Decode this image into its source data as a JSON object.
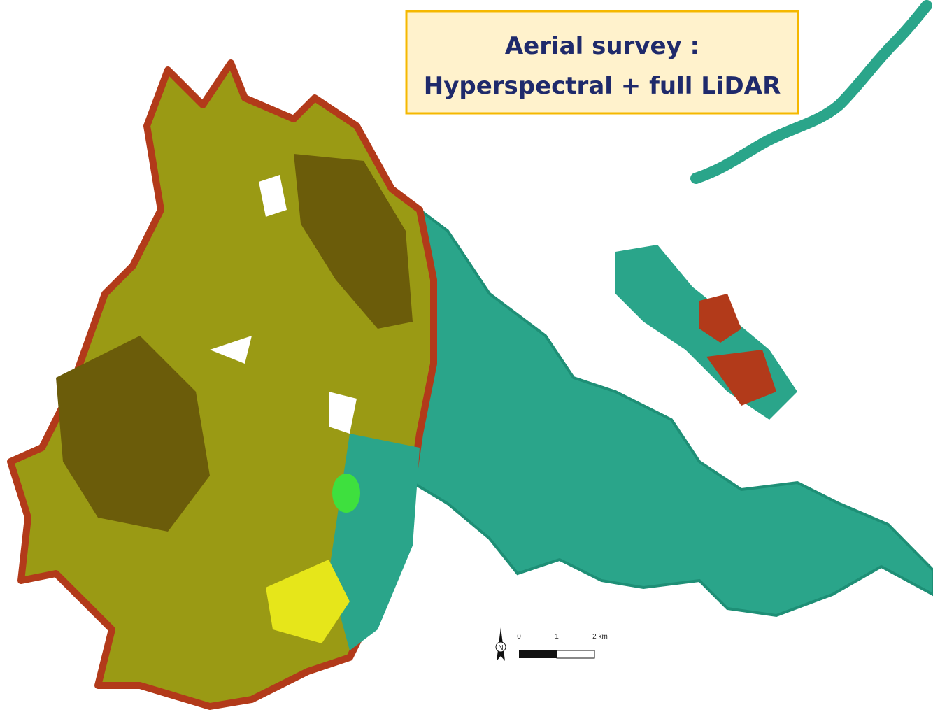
{
  "title_box": {
    "lines": [
      "Aerial survey :",
      "Hyperspectral + full LiDAR"
    ]
  },
  "scale_bar": {
    "labels": [
      "0",
      "1",
      "2 km"
    ],
    "north_label": "N"
  }
}
